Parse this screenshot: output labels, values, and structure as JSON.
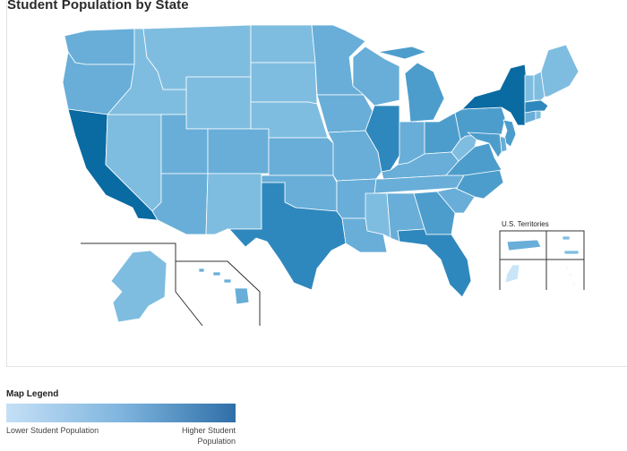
{
  "title": "Student Population by State",
  "territories_label": "U.S. Territories",
  "legend": {
    "title": "Map Legend",
    "low_label": "Lower Student Population",
    "high_label": "Higher Student Population",
    "colors": [
      "#c5e0f6",
      "#7fb5de",
      "#2f6fa8"
    ]
  },
  "regions": [
    {
      "id": "WA",
      "level": 2
    },
    {
      "id": "OR",
      "level": 2
    },
    {
      "id": "CA",
      "level": 5
    },
    {
      "id": "NV",
      "level": 1
    },
    {
      "id": "ID",
      "level": 1
    },
    {
      "id": "MT",
      "level": 1
    },
    {
      "id": "WY",
      "level": 1
    },
    {
      "id": "UT",
      "level": 2
    },
    {
      "id": "AZ",
      "level": 2
    },
    {
      "id": "CO",
      "level": 2
    },
    {
      "id": "NM",
      "level": 1
    },
    {
      "id": "ND",
      "level": 1
    },
    {
      "id": "SD",
      "level": 1
    },
    {
      "id": "NE",
      "level": 1
    },
    {
      "id": "KS",
      "level": 2
    },
    {
      "id": "OK",
      "level": 2
    },
    {
      "id": "TX",
      "level": 4
    },
    {
      "id": "MN",
      "level": 2
    },
    {
      "id": "IA",
      "level": 2
    },
    {
      "id": "MO",
      "level": 2
    },
    {
      "id": "AR",
      "level": 2
    },
    {
      "id": "LA",
      "level": 2
    },
    {
      "id": "WI",
      "level": 2
    },
    {
      "id": "IL",
      "level": 4
    },
    {
      "id": "MI",
      "level": 3
    },
    {
      "id": "IN",
      "level": 2
    },
    {
      "id": "OH",
      "level": 3
    },
    {
      "id": "KY",
      "level": 2
    },
    {
      "id": "TN",
      "level": 2
    },
    {
      "id": "MS",
      "level": 1
    },
    {
      "id": "AL",
      "level": 2
    },
    {
      "id": "GA",
      "level": 3
    },
    {
      "id": "FL",
      "level": 4
    },
    {
      "id": "SC",
      "level": 2
    },
    {
      "id": "NC",
      "level": 3
    },
    {
      "id": "VA",
      "level": 3
    },
    {
      "id": "WV",
      "level": 1
    },
    {
      "id": "PA",
      "level": 3
    },
    {
      "id": "NY",
      "level": 5
    },
    {
      "id": "NJ",
      "level": 3
    },
    {
      "id": "DE",
      "level": 2
    },
    {
      "id": "MD",
      "level": 3
    },
    {
      "id": "CT",
      "level": 2
    },
    {
      "id": "RI",
      "level": 1
    },
    {
      "id": "MA",
      "level": 4
    },
    {
      "id": "VT",
      "level": 1
    },
    {
      "id": "NH",
      "level": 1
    },
    {
      "id": "ME",
      "level": 1
    },
    {
      "id": "AK",
      "level": 1
    },
    {
      "id": "HI",
      "level": 2
    },
    {
      "id": "PR",
      "level": 2
    },
    {
      "id": "VI",
      "level": 1
    },
    {
      "id": "GU",
      "level": 0
    },
    {
      "id": "MP",
      "level": 0
    }
  ]
}
